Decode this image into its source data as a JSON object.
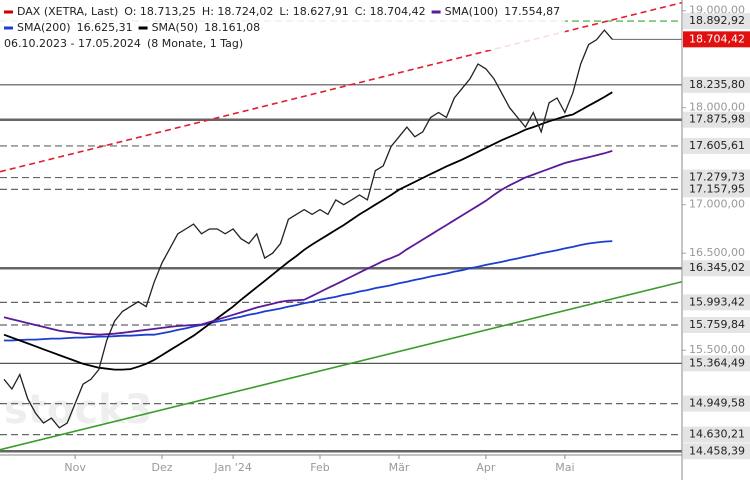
{
  "chart_data": {
    "type": "line",
    "title": "DAX (XETRA, Last)",
    "ohlc": [
      "O: 18.713,25",
      "H: 18.724,02",
      "L: 18.627,91",
      "C: 18.704,42"
    ],
    "period": "06.10.2023 - 17.05.2024",
    "period_note": "(8 Monate, 1 Tag)",
    "watermark": "stock3",
    "categories": [
      null,
      null,
      null,
      null,
      null,
      null,
      null,
      null,
      null,
      "Nov",
      null,
      null,
      null,
      null,
      null,
      null,
      null,
      null,
      null,
      null,
      "Dez",
      null,
      null,
      null,
      null,
      null,
      null,
      null,
      null,
      "Jan '24",
      null,
      null,
      null,
      null,
      null,
      null,
      null,
      null,
      null,
      null,
      "Feb",
      null,
      null,
      null,
      null,
      null,
      null,
      null,
      null,
      null,
      "Mär",
      null,
      null,
      null,
      null,
      null,
      null,
      null,
      null,
      null,
      null,
      "Apr",
      null,
      null,
      null,
      null,
      null,
      null,
      null,
      null,
      null,
      "Mai",
      null,
      null,
      null,
      null,
      null,
      null
    ],
    "values": [
      15200,
      15100,
      15250,
      15000,
      14850,
      14750,
      14800,
      14700,
      14750,
      14950,
      15150,
      15200,
      15300,
      15600,
      15800,
      15900,
      15950,
      16000,
      15950,
      16200,
      16400,
      16550,
      16700,
      16750,
      16800,
      16700,
      16750,
      16750,
      16700,
      16750,
      16650,
      16600,
      16700,
      16450,
      16500,
      16600,
      16850,
      16900,
      16950,
      16900,
      16950,
      16900,
      17050,
      17000,
      17050,
      17100,
      17050,
      17350,
      17400,
      17600,
      17700,
      17800,
      17700,
      17750,
      17900,
      17950,
      17900,
      18100,
      18200,
      18300,
      18450,
      18400,
      18300,
      18150,
      18000,
      17900,
      17800,
      17950,
      17750,
      18050,
      18100,
      17950,
      18150,
      18450,
      18650,
      18700,
      18800,
      18704.42
    ],
    "color": "#222222",
    "series": [
      {
        "name": "SMA(200)",
        "value_label": "16.625,31",
        "color": "#1a3fd0",
        "values": [
          15600,
          15600,
          15605,
          15610,
          15610,
          15615,
          15620,
          15620,
          15625,
          15630,
          15630,
          15635,
          15640,
          15640,
          15645,
          15650,
          15650,
          15655,
          15660,
          15660,
          15675,
          15690,
          15710,
          15725,
          15745,
          15760,
          15780,
          15795,
          15810,
          15830,
          15845,
          15865,
          15880,
          15900,
          15915,
          15930,
          15950,
          15965,
          15985,
          16000,
          16020,
          16035,
          16050,
          16070,
          16085,
          16105,
          16120,
          16140,
          16155,
          16170,
          16190,
          16205,
          16225,
          16240,
          16260,
          16275,
          16290,
          16310,
          16325,
          16345,
          16360,
          16380,
          16395,
          16410,
          16430,
          16445,
          16465,
          16480,
          16500,
          16515,
          16530,
          16550,
          16565,
          16585,
          16600,
          16610,
          16620,
          16625
        ]
      },
      {
        "name": "SMA(50)",
        "value_label": "18.161,08",
        "color": "#000000",
        "values": [
          15660,
          15630,
          15600,
          15570,
          15540,
          15510,
          15480,
          15450,
          15420,
          15390,
          15360,
          15340,
          15320,
          15310,
          15300,
          15300,
          15305,
          15330,
          15360,
          15400,
          15450,
          15500,
          15550,
          15600,
          15650,
          15710,
          15770,
          15830,
          15890,
          15950,
          16020,
          16085,
          16150,
          16215,
          16280,
          16345,
          16410,
          16470,
          16535,
          16590,
          16640,
          16690,
          16740,
          16790,
          16845,
          16900,
          16950,
          17000,
          17050,
          17100,
          17155,
          17195,
          17235,
          17275,
          17315,
          17355,
          17395,
          17430,
          17465,
          17505,
          17545,
          17585,
          17625,
          17665,
          17700,
          17735,
          17773,
          17800,
          17830,
          17860,
          17885,
          17910,
          17930,
          17975,
          18020,
          18065,
          18110,
          18160
        ]
      },
      {
        "name": "SMA(100)",
        "value_label": "17.554,87",
        "color": "#5b1a9a",
        "values": [
          15840,
          15820,
          15800,
          15780,
          15760,
          15740,
          15720,
          15700,
          15690,
          15680,
          15670,
          15665,
          15660,
          15665,
          15670,
          15680,
          15690,
          15700,
          15710,
          15720,
          15730,
          15740,
          15750,
          15755,
          15760,
          15765,
          15790,
          15815,
          15840,
          15865,
          15890,
          15915,
          15940,
          15960,
          15980,
          16000,
          16010,
          16015,
          16020,
          16060,
          16100,
          16140,
          16180,
          16220,
          16260,
          16300,
          16340,
          16380,
          16420,
          16450,
          16485,
          16540,
          16590,
          16640,
          16690,
          16740,
          16790,
          16840,
          16890,
          16940,
          16990,
          17040,
          17100,
          17155,
          17200,
          17240,
          17280,
          17310,
          17340,
          17370,
          17400,
          17430,
          17450,
          17470,
          17490,
          17510,
          17530,
          17555
        ]
      }
    ],
    "trendlines": [
      {
        "color": "#e02030",
        "style": "dashed",
        "values": [
          17340,
          19083
        ]
      },
      {
        "color": "#3a9a2a",
        "style": "solid",
        "values": [
          14474,
          16206
        ]
      }
    ],
    "levels": [
      {
        "value": 18892.92,
        "label": "18.892,92",
        "style": "dashed",
        "color": "#33aa33"
      },
      {
        "value": 18704.42,
        "label": "18.704,42",
        "style": "current",
        "color": "#e01010"
      },
      {
        "value": 18235.8,
        "label": "18.235,80",
        "style": "solid",
        "color": "#555555"
      },
      {
        "value": 17875.98,
        "label": "17.875,98",
        "style": "thick",
        "color": "#666666"
      },
      {
        "value": 17605.61,
        "label": "17.605,61",
        "style": "dashed",
        "color": "#666666"
      },
      {
        "value": 17279.73,
        "label": "17.279,73",
        "style": "dashed",
        "color": "#666666"
      },
      {
        "value": 17157.95,
        "label": "17.157,95",
        "style": "dashed",
        "color": "#666666"
      },
      {
        "value": 16345.02,
        "label": "16.345,02",
        "style": "thick",
        "color": "#666666"
      },
      {
        "value": 15993.42,
        "label": "15.993,42",
        "style": "dashed",
        "color": "#666666"
      },
      {
        "value": 15759.84,
        "label": "15.759,84",
        "style": "dashed",
        "color": "#666666"
      },
      {
        "value": 15364.49,
        "label": "15.364,49",
        "style": "solid",
        "color": "#555555"
      },
      {
        "value": 14949.58,
        "label": "14.949,58",
        "style": "dashed",
        "color": "#666666"
      },
      {
        "value": 14630.21,
        "label": "14.630,21",
        "style": "dashed",
        "color": "#666666"
      },
      {
        "value": 14458.39,
        "label": "14.458,39",
        "style": "thick",
        "color": "#666666"
      }
    ],
    "ylim": [
      14420,
      19110
    ],
    "yticks": [
      {
        "value": 19000,
        "label": "19.000,00"
      },
      {
        "value": 18000,
        "label": "18.000,00"
      },
      {
        "value": 17000,
        "label": "17.000,00"
      },
      {
        "value": 16500,
        "label": "16.500,00"
      },
      {
        "value": 15500,
        "label": "15.500,00"
      }
    ]
  }
}
